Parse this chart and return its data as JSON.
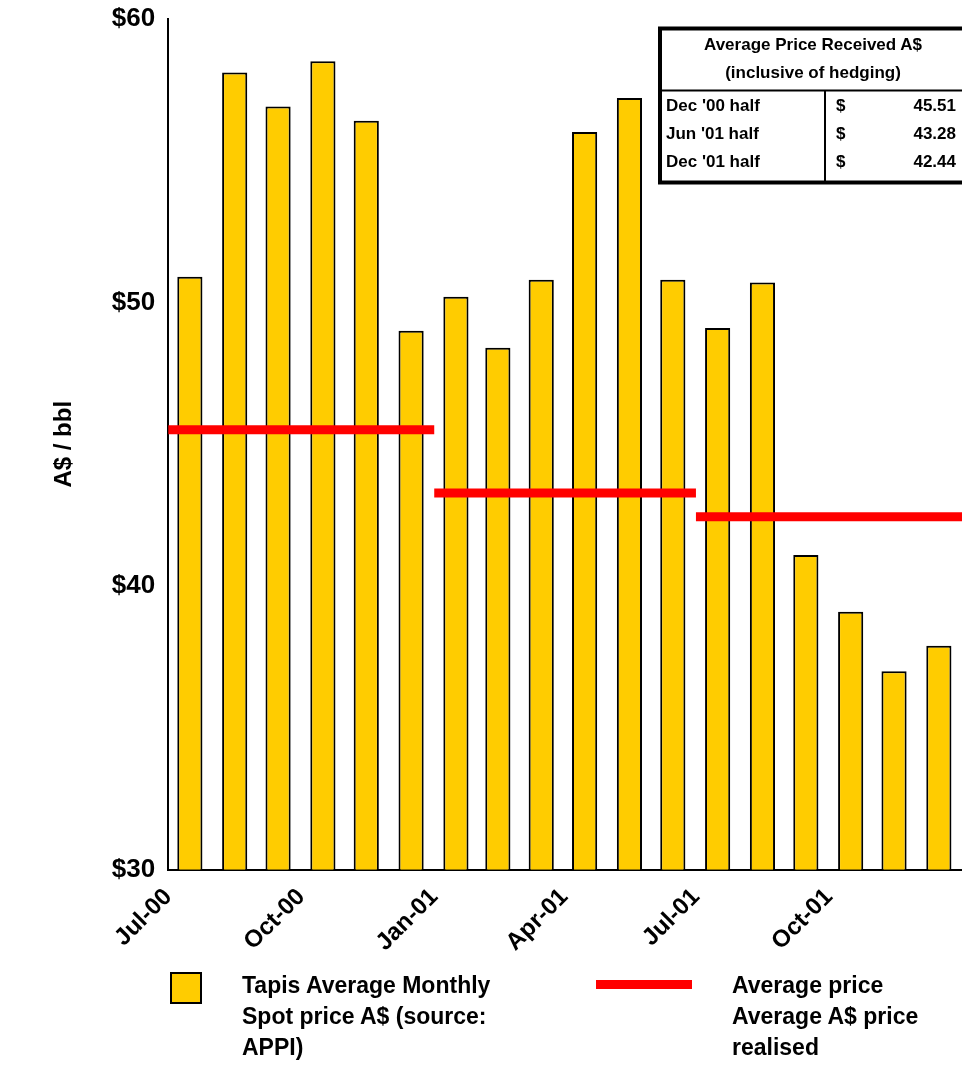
{
  "chart_data": {
    "type": "bar",
    "ylabel": "A$ / bbl",
    "x": [
      "2000-07-16",
      "2000-08-16",
      "2000-09-15",
      "2000-10-16",
      "2000-11-15",
      "2000-12-16",
      "2001-01-16",
      "2001-02-14",
      "2001-03-16",
      "2001-04-15",
      "2001-05-16",
      "2001-06-15",
      "2001-07-16",
      "2001-08-16",
      "2001-09-15",
      "2001-10-16",
      "2001-11-15",
      "2001-12-16"
    ],
    "series": [
      {
        "name": "Tapis Average Monthly Spot price A$ (source: APPI)",
        "color": "#ffcc00",
        "values": [
          50.9,
          58.1,
          56.9,
          58.5,
          56.4,
          49.0,
          50.2,
          48.4,
          50.8,
          56.0,
          57.2,
          50.8,
          49.1,
          50.7,
          41.1,
          39.1,
          37.0,
          37.9
        ]
      },
      {
        "type": "line",
        "name": "Average price\nAverage A$ price realised",
        "color": "#ff0000",
        "x": [
          "2000-07",
          "2001-01"
        ],
        "values": [
          45.51,
          45.51
        ]
      },
      {
        "type": "line",
        "color": "#ff0000",
        "x": [
          "2001-01",
          "2001-07"
        ],
        "values": [
          43.28,
          43.28
        ]
      },
      {
        "type": "line",
        "color": "#ff0000",
        "x": [
          "2001-07",
          "2002-01"
        ],
        "values": [
          42.44,
          42.44
        ]
      }
    ],
    "xlim": [
      "2000-07",
      "2002-01"
    ],
    "xticks": [
      {
        "value": "2000-07",
        "label": "Jul-00"
      },
      {
        "value": "2000-10",
        "label": "Oct-00"
      },
      {
        "value": "2001-01",
        "label": "Jan-01"
      },
      {
        "value": "2001-04",
        "label": "Apr-01"
      },
      {
        "value": "2001-07",
        "label": "Jul-01"
      },
      {
        "value": "2001-10",
        "label": "Oct-01"
      }
    ],
    "ylim": [
      30,
      60
    ],
    "yticks": [
      {
        "value": 30,
        "label": "$30"
      },
      {
        "value": 40,
        "label": "$40"
      },
      {
        "value": 50,
        "label": "$50"
      },
      {
        "value": 60,
        "label": "$60"
      }
    ],
    "annotations": [
      "Average Price Received A$",
      "(inclusive of hedging)",
      "Dec '00 half",
      "$",
      "45.51",
      "Jun '01 half",
      "$",
      "43.28",
      "Dec '01 half",
      "$",
      "42.44"
    ],
    "legend": "bottom"
  }
}
